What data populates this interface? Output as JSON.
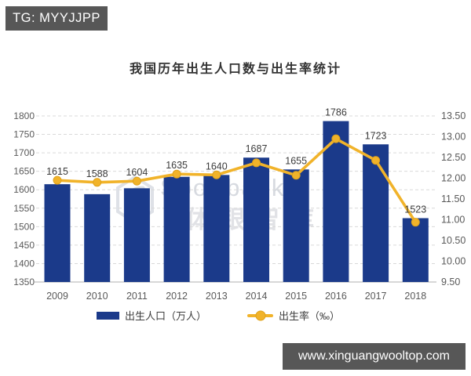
{
  "overlay": {
    "telegram_badge": "TG: MYYJJPP",
    "website_badge": "www.xinguangwooltop.com"
  },
  "watermark": {
    "brand": "Sportbank",
    "brand_cn": "体银智库"
  },
  "chart_data": {
    "type": "bar",
    "subtype": "bar-line-combo-dual-axis",
    "title": "我国历年出生人口数与出生率统计",
    "categories": [
      "2009",
      "2010",
      "2011",
      "2012",
      "2013",
      "2014",
      "2015",
      "2016",
      "2017",
      "2018"
    ],
    "series": [
      {
        "name": "出生人口（万人）",
        "type": "bar",
        "axis": "left",
        "values": [
          1615,
          1588,
          1604,
          1635,
          1640,
          1687,
          1655,
          1786,
          1723,
          1523
        ]
      },
      {
        "name": "出生率（‰）",
        "type": "line",
        "axis": "right",
        "values": [
          11.95,
          11.9,
          11.93,
          12.1,
          12.08,
          12.37,
          12.07,
          12.95,
          12.43,
          10.94
        ]
      }
    ],
    "left_axis": {
      "min": 1350,
      "max": 1800,
      "step": 50,
      "ticks": [
        "1800",
        "1750",
        "1700",
        "1650",
        "1600",
        "1550",
        "1500",
        "1450",
        "1400",
        "1350"
      ]
    },
    "right_axis": {
      "min": 9.5,
      "max": 13.5,
      "step": 0.5,
      "ticks": [
        "13.50",
        "13.00",
        "12.50",
        "12.00",
        "11.50",
        "11.00",
        "10.50",
        "10.00",
        "9.50"
      ]
    },
    "grid": "horizontal-dashed",
    "legend_position": "bottom",
    "colors": {
      "bar": "#1b3a8a",
      "line": "#f1b32a",
      "marker_edge": "#dfa21a",
      "gridline": "#d9d9d9",
      "axis_line": "#bfbfbf",
      "tick_label": "#595959",
      "data_label": "#3b3b3b"
    }
  }
}
